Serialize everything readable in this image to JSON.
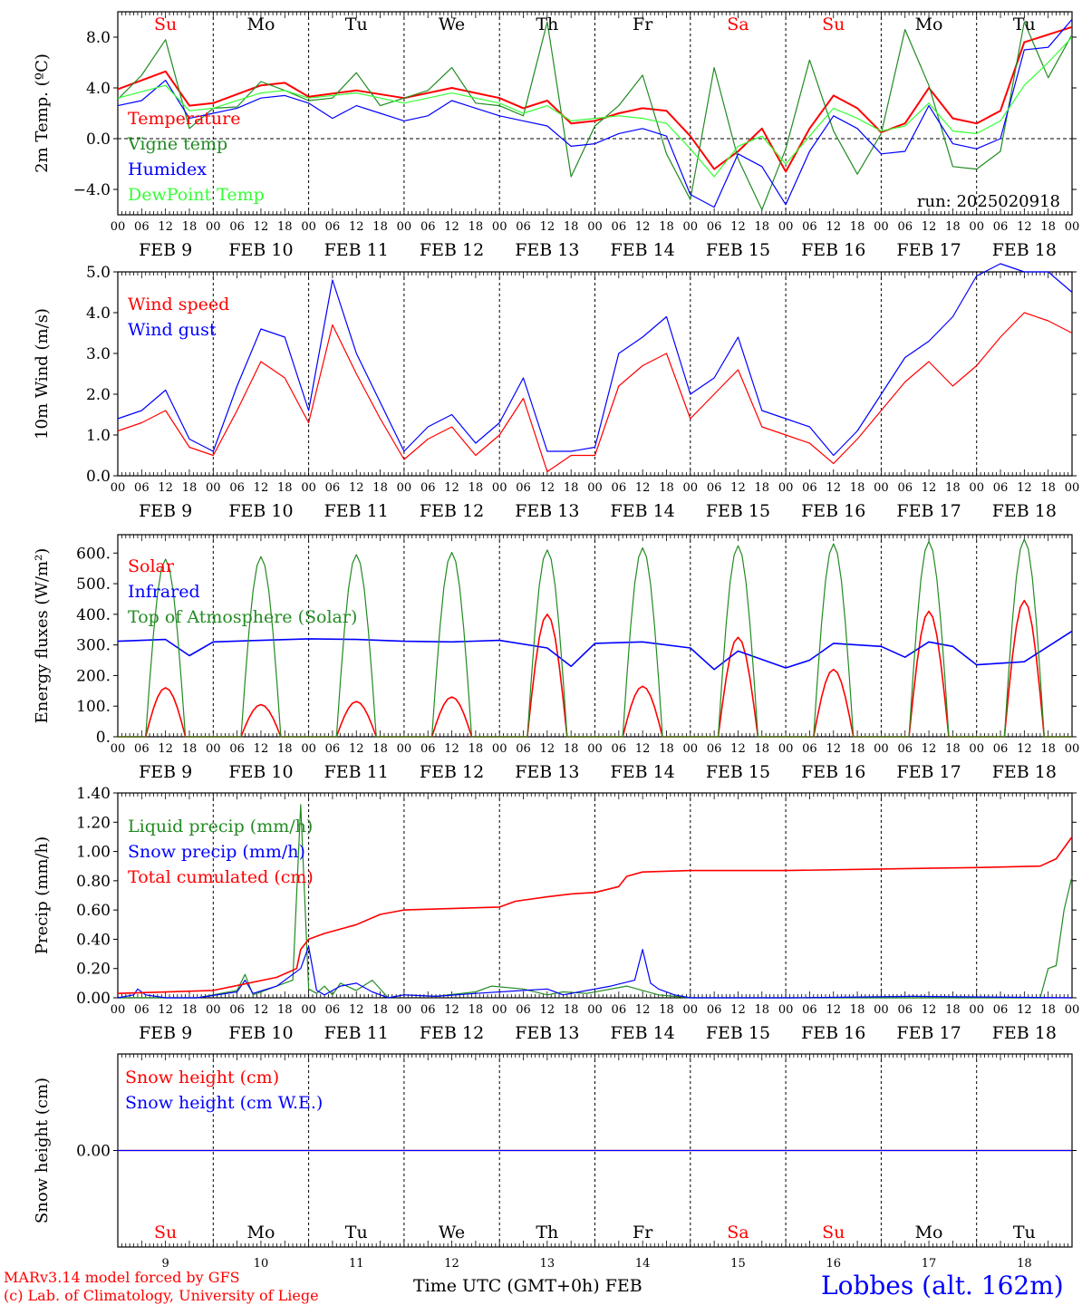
{
  "colors": {
    "red": "#ff0000",
    "green": "#228b22",
    "blue": "#0000ff",
    "lightgreen": "#33ff33",
    "black": "#000000"
  },
  "day_labels": [
    "Su",
    "Mo",
    "Tu",
    "We",
    "Th",
    "Fr",
    "Sa",
    "Su",
    "Mo",
    "Tu"
  ],
  "weekend_days": [
    0,
    6,
    7
  ],
  "date_labels": [
    "FEB  9",
    "FEB 10",
    "FEB 11",
    "FEB 12",
    "FEB 13",
    "FEB 14",
    "FEB 15",
    "FEB 16",
    "FEB 17",
    "FEB 18"
  ],
  "hour_ticks": [
    "00",
    "06",
    "12",
    "18"
  ],
  "bottom_day_numbers": [
    "9",
    "10",
    "11",
    "12",
    "13",
    "14",
    "15",
    "16",
    "17",
    "18"
  ],
  "footer": {
    "model_line": "MARv3.14 model forced by GFS",
    "copyright_line": "(c) Lab. of Climatology, University of Liege",
    "x_axis_title": "Time UTC (GMT+0h) FEB",
    "location": "Lobbes (alt. 162m)"
  },
  "chart_data": [
    {
      "type": "line",
      "ylabel": "2m Temp. (ºC)",
      "ylim": [
        -6.0,
        10.0
      ],
      "yticks": [
        -4.0,
        0.0,
        4.0,
        8.0
      ],
      "ytick_labels": [
        "−4.0",
        "0.0",
        "4.0",
        "8.0"
      ],
      "dashed_zero": 0.0,
      "annotation": "run: 2025020918",
      "x_unit": "hours since FEB 9 00 UTC",
      "series": [
        {
          "name": "Temperature",
          "color": "red",
          "width": 2.0,
          "x": [
            0,
            12,
            18,
            24,
            36,
            42,
            48,
            60,
            72,
            84,
            90,
            96,
            102,
            108,
            114,
            120,
            126,
            132,
            138,
            144,
            150,
            156,
            162,
            168,
            174,
            180,
            186,
            192,
            198,
            204,
            210,
            216,
            222,
            228,
            234,
            240
          ],
          "y": [
            3.9,
            5.3,
            2.6,
            2.8,
            4.2,
            4.4,
            3.3,
            3.8,
            3.2,
            4.0,
            3.6,
            3.2,
            2.4,
            3.0,
            1.2,
            1.4,
            2.0,
            2.4,
            2.2,
            0.2,
            -2.4,
            -1.0,
            0.8,
            -2.6,
            0.8,
            3.4,
            2.4,
            0.5,
            1.2,
            4.0,
            1.6,
            1.2,
            2.2,
            7.6,
            8.2,
            8.8
          ]
        },
        {
          "name": "Vigne temp",
          "color": "green",
          "width": 1.2,
          "x": [
            0,
            6,
            12,
            18,
            24,
            30,
            36,
            42,
            48,
            54,
            60,
            66,
            72,
            78,
            84,
            90,
            96,
            102,
            108,
            114,
            120,
            126,
            132,
            138,
            144,
            150,
            156,
            162,
            168,
            174,
            180,
            186,
            192,
            198,
            204,
            210,
            216,
            222,
            228,
            234,
            240
          ],
          "y": [
            3.1,
            5.0,
            7.8,
            0.8,
            2.4,
            2.5,
            4.5,
            3.8,
            3.0,
            3.2,
            5.2,
            2.6,
            3.2,
            3.8,
            5.6,
            2.8,
            2.6,
            1.8,
            9.2,
            -3.0,
            1.0,
            2.6,
            5.0,
            -1.2,
            -4.8,
            5.6,
            -1.6,
            -5.6,
            -0.8,
            6.2,
            0.6,
            -2.8,
            0.4,
            8.6,
            4.2,
            -2.2,
            -2.4,
            -1.0,
            9.2,
            4.8,
            8.2
          ]
        },
        {
          "name": "Humidex",
          "color": "blue",
          "width": 1.2,
          "x": [
            0,
            6,
            12,
            18,
            24,
            30,
            36,
            42,
            48,
            54,
            60,
            66,
            72,
            78,
            84,
            90,
            96,
            102,
            108,
            114,
            120,
            126,
            132,
            138,
            144,
            150,
            156,
            162,
            168,
            174,
            180,
            186,
            192,
            198,
            204,
            210,
            216,
            222,
            228,
            234,
            240
          ],
          "y": [
            2.6,
            3.0,
            4.6,
            1.6,
            2.0,
            2.4,
            3.2,
            3.4,
            2.8,
            1.6,
            2.6,
            2.0,
            1.4,
            1.8,
            3.0,
            2.4,
            1.8,
            1.4,
            1.0,
            -0.6,
            -0.4,
            0.4,
            0.8,
            0.2,
            -4.4,
            -5.4,
            -1.2,
            -2.2,
            -5.2,
            -1.0,
            1.8,
            0.8,
            -1.2,
            -1.0,
            2.6,
            -0.4,
            -0.8,
            0.0,
            7.0,
            7.2,
            9.4
          ]
        },
        {
          "name": "DewPoint Temp",
          "color": "lightgreen",
          "width": 1.2,
          "x": [
            0,
            12,
            18,
            24,
            36,
            42,
            48,
            60,
            72,
            84,
            90,
            96,
            102,
            108,
            114,
            120,
            126,
            132,
            138,
            144,
            150,
            156,
            162,
            168,
            174,
            180,
            186,
            192,
            198,
            204,
            210,
            216,
            222,
            228,
            234,
            240
          ],
          "y": [
            3.2,
            4.2,
            2.2,
            2.4,
            3.6,
            3.8,
            3.2,
            3.6,
            2.8,
            3.6,
            3.2,
            2.8,
            2.0,
            2.6,
            1.4,
            1.6,
            1.8,
            1.6,
            1.2,
            -0.8,
            -3.0,
            -0.6,
            0.2,
            -2.0,
            0.2,
            2.4,
            1.6,
            0.6,
            1.0,
            2.8,
            0.6,
            0.4,
            1.4,
            4.2,
            6.0,
            8.0
          ]
        }
      ]
    },
    {
      "type": "line",
      "ylabel": "10m Wind (m/s)",
      "ylim": [
        0.0,
        5.0
      ],
      "yticks": [
        0.0,
        1.0,
        2.0,
        3.0,
        4.0,
        5.0
      ],
      "ytick_labels": [
        "0.0",
        "1.0",
        "2.0",
        "3.0",
        "4.0",
        "5.0"
      ],
      "dashed_top": 5.0,
      "x_unit": "hours since FEB 9 00 UTC",
      "series": [
        {
          "name": "Wind speed",
          "color": "red",
          "width": 1.2,
          "x": [
            0,
            6,
            12,
            18,
            24,
            30,
            36,
            42,
            48,
            54,
            60,
            66,
            72,
            78,
            84,
            90,
            96,
            102,
            108,
            114,
            120,
            126,
            132,
            138,
            144,
            150,
            156,
            162,
            168,
            174,
            180,
            186,
            192,
            198,
            204,
            210,
            216,
            222,
            228,
            234,
            240
          ],
          "y": [
            1.1,
            1.3,
            1.6,
            0.7,
            0.5,
            1.6,
            2.8,
            2.4,
            1.3,
            3.7,
            2.5,
            1.4,
            0.4,
            0.9,
            1.2,
            0.5,
            1.0,
            1.9,
            0.1,
            0.5,
            0.5,
            2.2,
            2.7,
            3.0,
            1.4,
            2.0,
            2.6,
            1.2,
            1.0,
            0.8,
            0.3,
            0.9,
            1.6,
            2.3,
            2.8,
            2.2,
            2.7,
            3.4,
            4.0,
            3.8,
            3.5
          ]
        },
        {
          "name": "Wind gust",
          "color": "blue",
          "width": 1.2,
          "x": [
            0,
            6,
            12,
            18,
            24,
            30,
            36,
            42,
            48,
            54,
            60,
            66,
            72,
            78,
            84,
            90,
            96,
            102,
            108,
            114,
            120,
            126,
            132,
            138,
            144,
            150,
            156,
            162,
            168,
            174,
            180,
            186,
            192,
            198,
            204,
            210,
            216,
            222,
            228,
            234,
            240
          ],
          "y": [
            1.4,
            1.6,
            2.1,
            0.9,
            0.6,
            2.2,
            3.6,
            3.4,
            1.6,
            4.8,
            3.0,
            1.8,
            0.6,
            1.2,
            1.5,
            0.8,
            1.3,
            2.4,
            0.6,
            0.6,
            0.7,
            3.0,
            3.4,
            3.9,
            2.0,
            2.4,
            3.4,
            1.6,
            1.4,
            1.2,
            0.5,
            1.1,
            2.0,
            2.9,
            3.3,
            3.9,
            4.9,
            5.2,
            5.0,
            5.0,
            4.5
          ]
        }
      ]
    },
    {
      "type": "line",
      "ylabel": "Energy fluxes (W/m²)",
      "ylim": [
        0,
        660
      ],
      "yticks": [
        0,
        100,
        200,
        300,
        400,
        500,
        600
      ],
      "ytick_labels": [
        "0.",
        "100.",
        "200.",
        "300.",
        "400.",
        "500.",
        "600."
      ],
      "x_unit": "hours since FEB 9 00 UTC",
      "series": [
        {
          "name": "Solar",
          "color": "red",
          "width": 1.6,
          "daily_peak": [
            160,
            105,
            115,
            130,
            400,
            165,
            325,
            220,
            410,
            445
          ],
          "day_curve": "sunrise 07h, sunset 17h"
        },
        {
          "name": "Infrared",
          "color": "blue",
          "width": 1.6,
          "x": [
            0,
            12,
            18,
            24,
            36,
            48,
            60,
            72,
            84,
            96,
            108,
            114,
            120,
            132,
            144,
            150,
            156,
            168,
            174,
            180,
            192,
            198,
            204,
            210,
            216,
            228,
            240
          ],
          "y": [
            312,
            318,
            265,
            310,
            315,
            320,
            318,
            312,
            310,
            315,
            290,
            230,
            305,
            310,
            290,
            220,
            280,
            225,
            250,
            305,
            295,
            260,
            310,
            295,
            235,
            245,
            345
          ]
        },
        {
          "name": "Top of Atmosphere (Solar)",
          "color": "green",
          "width": 1.2,
          "daily_peak": [
            580,
            588,
            595,
            602,
            610,
            617,
            624,
            630,
            638,
            645
          ],
          "day_curve": "sunrise 07h, sunset 17h"
        }
      ]
    },
    {
      "type": "line",
      "ylabel": "Precip (mm/h)",
      "ylim": [
        0.0,
        1.4
      ],
      "yticks": [
        0.0,
        0.2,
        0.4,
        0.6,
        0.8,
        1.0,
        1.2,
        1.4
      ],
      "ytick_labels": [
        "0.00",
        "0.20",
        "0.40",
        "0.60",
        "0.80",
        "1.00",
        "1.20",
        "1.40"
      ],
      "x_unit": "hours since FEB 9 00 UTC",
      "series": [
        {
          "name": "Liquid precip (mm/h)",
          "color": "green",
          "width": 1.2,
          "x": [
            0,
            20,
            30,
            32,
            34,
            40,
            44,
            46,
            48,
            50,
            52,
            54,
            56,
            60,
            64,
            68,
            72,
            80,
            90,
            94,
            102,
            108,
            112,
            118,
            128,
            136,
            140,
            144,
            170,
            200,
            232,
            234,
            236,
            238,
            240
          ],
          "y": [
            0,
            0,
            0.05,
            0.16,
            0.02,
            0.08,
            0.12,
            1.32,
            0.06,
            0.03,
            0.08,
            0.02,
            0.1,
            0.05,
            0.12,
            0,
            0.02,
            0.01,
            0.04,
            0.08,
            0.06,
            0.02,
            0.04,
            0.03,
            0.08,
            0.02,
            0.01,
            0,
            0,
            0,
            0,
            0.2,
            0.22,
            0.6,
            0.83
          ]
        },
        {
          "name": "Snow precip (mm/h)",
          "color": "blue",
          "width": 1.2,
          "x": [
            0,
            4,
            5,
            7,
            12,
            20,
            30,
            32,
            34,
            40,
            46,
            48,
            50,
            52,
            56,
            60,
            64,
            68,
            72,
            80,
            90,
            102,
            108,
            112,
            124,
            130,
            132,
            134,
            136,
            140,
            144,
            170,
            200,
            240
          ],
          "y": [
            0,
            0.02,
            0.06,
            0.02,
            0,
            0,
            0.04,
            0.12,
            0.03,
            0.08,
            0.2,
            0.35,
            0.05,
            0.02,
            0.08,
            0.1,
            0.04,
            0,
            0.02,
            0.01,
            0.03,
            0.05,
            0.06,
            0.02,
            0.08,
            0.12,
            0.33,
            0.1,
            0.06,
            0.02,
            0,
            0,
            0.01,
            0
          ]
        },
        {
          "name": "Total cumulated (cm)",
          "color": "red",
          "width": 1.6,
          "x": [
            0,
            24,
            40,
            45,
            46,
            48,
            52,
            60,
            66,
            72,
            96,
            100,
            108,
            114,
            120,
            126,
            128,
            132,
            144,
            168,
            192,
            216,
            232,
            236,
            240
          ],
          "y": [
            0.03,
            0.05,
            0.14,
            0.2,
            0.33,
            0.4,
            0.44,
            0.5,
            0.57,
            0.6,
            0.62,
            0.66,
            0.69,
            0.71,
            0.72,
            0.76,
            0.83,
            0.86,
            0.87,
            0.87,
            0.88,
            0.89,
            0.9,
            0.95,
            1.1
          ]
        }
      ]
    },
    {
      "type": "line",
      "ylabel": "Snow height (cm)",
      "ylim": [
        -1.0,
        1.0
      ],
      "yticks": [
        0.0
      ],
      "ytick_labels": [
        "0.00"
      ],
      "x_unit": "hours since FEB 9 00 UTC",
      "series": [
        {
          "name": "Snow height (cm)",
          "color": "red",
          "width": 1.2,
          "x": [
            0,
            240
          ],
          "y": [
            0.0,
            0.0
          ]
        },
        {
          "name": "Snow height (cm W.E.)",
          "color": "blue",
          "width": 1.2,
          "x": [
            0,
            240
          ],
          "y": [
            0.0,
            0.0
          ]
        }
      ]
    }
  ]
}
